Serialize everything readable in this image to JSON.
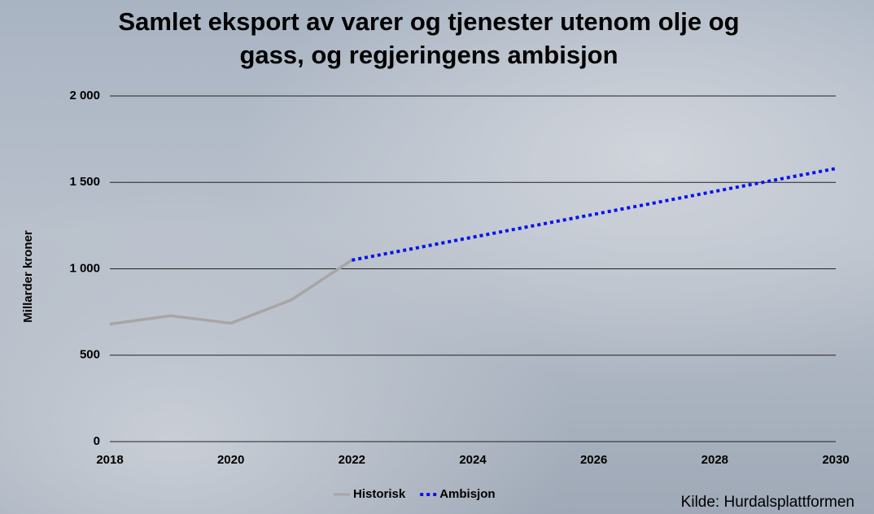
{
  "chart_data": {
    "type": "line",
    "title": "Samlet eksport av varer og tjenester utenom olje og gass, og regjeringens ambisjon",
    "y_label": "Millarder kroner",
    "source": "Kilde: Hurdalsplattformen",
    "x": [
      2018,
      2019,
      2020,
      2021,
      2022,
      2023,
      2024,
      2025,
      2026,
      2027,
      2028,
      2029,
      2030
    ],
    "series": [
      {
        "name": "Historisk",
        "color": "#a8a6a4",
        "style": "solid",
        "values": [
          680,
          728,
          685,
          820,
          1050,
          null,
          null,
          null,
          null,
          null,
          null,
          null,
          null
        ]
      },
      {
        "name": "Ambisjon",
        "color": "#0a14e6",
        "style": "dotted",
        "values": [
          null,
          null,
          null,
          null,
          1050,
          1116,
          1183,
          1249,
          1315,
          1381,
          1448,
          1514,
          1580
        ]
      }
    ],
    "xlim": [
      2018,
      2030
    ],
    "xticks": [
      2018,
      2020,
      2022,
      2024,
      2026,
      2028,
      2030
    ],
    "ylim": [
      0,
      2000
    ],
    "yticks": [
      0,
      500,
      {
        "value": 1000,
        "label": "1 000"
      },
      {
        "value": 1500,
        "label": "1 500"
      },
      {
        "value": 2000,
        "label": "2 000"
      }
    ],
    "grid": true,
    "legend": "bottom"
  }
}
